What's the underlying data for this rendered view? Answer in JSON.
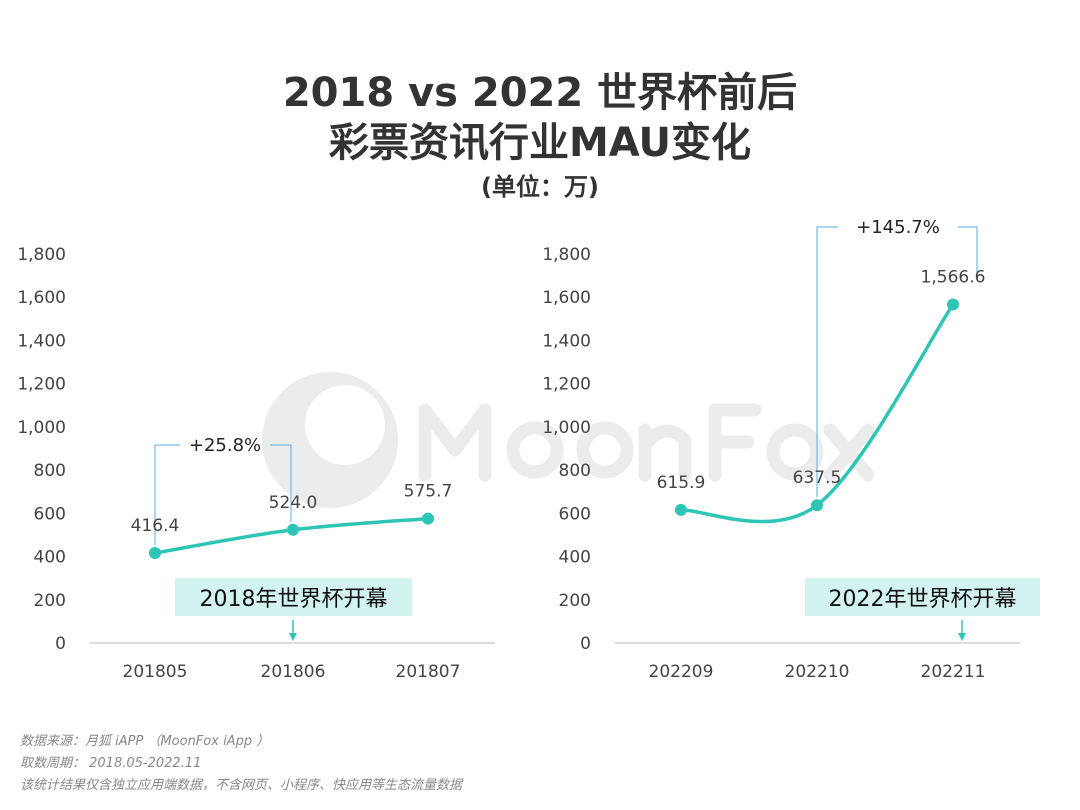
{
  "title": {
    "line1": "2018 vs 2022 世界杯前后",
    "line2": "彩票资讯行业MAU变化",
    "unit": "(单位：万)"
  },
  "watermark": "MoonFox",
  "colors": {
    "line": "#2ec4b6",
    "bracket": "#5aaee0",
    "callout_bg": "#d3f3f1",
    "axis": "#d0d0d0",
    "text": "#333333"
  },
  "chart_data": [
    {
      "type": "line",
      "categories": [
        "201805",
        "201806",
        "201807"
      ],
      "values": [
        416.4,
        524.0,
        575.7
      ],
      "value_labels": [
        "416.4",
        "524.0",
        "575.7"
      ],
      "ylim": [
        0,
        1800
      ],
      "yticks": [
        "0",
        "200",
        "400",
        "600",
        "800",
        "1,000",
        "1,200",
        "1,400",
        "1,600",
        "1,800"
      ],
      "smooth": true,
      "grid": false,
      "annotations": {
        "growth": "+25.8%",
        "growth_from": "201805",
        "growth_to": "201806",
        "event": "2018年世界杯开幕",
        "event_at": "201806"
      }
    },
    {
      "type": "line",
      "categories": [
        "202209",
        "202210",
        "202211"
      ],
      "values": [
        615.9,
        637.5,
        1566.6
      ],
      "value_labels": [
        "615.9",
        "637.5",
        "1,566.6"
      ],
      "ylim": [
        0,
        1800
      ],
      "yticks": [
        "0",
        "200",
        "400",
        "600",
        "800",
        "1,000",
        "1,200",
        "1,400",
        "1,600",
        "1,800"
      ],
      "smooth": true,
      "grid": false,
      "annotations": {
        "growth": "+145.7%",
        "growth_from": "202210",
        "growth_to": "202211",
        "event": "2022年世界杯开幕",
        "event_at": "202211"
      }
    }
  ],
  "footer": {
    "source": "数据来源：月狐 iAPP （MoonFox iApp ）",
    "period": "取数周期： 2018.05-2022.11",
    "note": "该统计结果仅含独立应用端数据，不含网页、小程序、快应用等生态流量数据"
  }
}
